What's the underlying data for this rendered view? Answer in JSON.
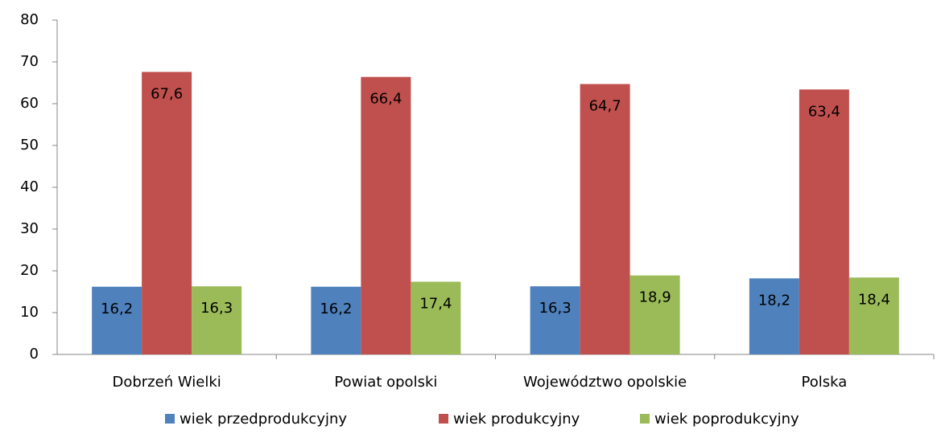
{
  "chart_data": {
    "type": "bar",
    "categories": [
      "Dobrzeń Wielki",
      "Powiat opolski",
      "Województwo opolskie",
      "Polska"
    ],
    "series": [
      {
        "name": "wiek przedprodukcyjny",
        "color": "#4f81bd",
        "values": [
          16.2,
          16.2,
          16.3,
          18.2
        ],
        "value_labels": [
          "16,2",
          "16,2",
          "16,3",
          "18,2"
        ]
      },
      {
        "name": "wiek produkcyjny",
        "color": "#c0504d",
        "values": [
          67.6,
          66.4,
          64.7,
          63.4
        ],
        "value_labels": [
          "67,6",
          "66,4",
          "64,7",
          "63,4"
        ]
      },
      {
        "name": "wiek poprodukcyjny",
        "color": "#9bbb59",
        "values": [
          16.3,
          17.4,
          18.9,
          18.4
        ],
        "value_labels": [
          "16,3",
          "17,4",
          "18,9",
          "18,4"
        ]
      }
    ],
    "ylim": [
      0,
      80
    ],
    "yticks": [
      0,
      10,
      20,
      30,
      40,
      50,
      60,
      70,
      80
    ],
    "grid": false,
    "legend": "bottom"
  }
}
